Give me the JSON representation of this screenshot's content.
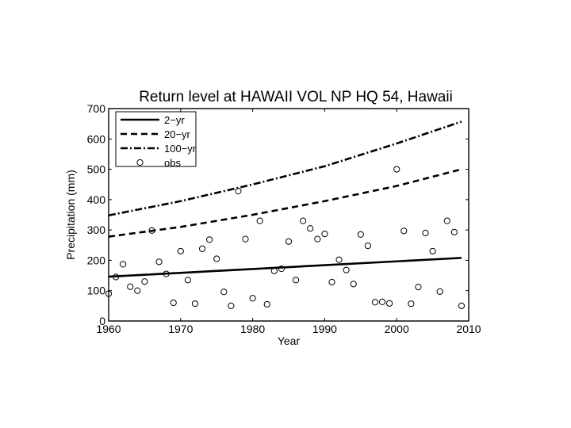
{
  "chart_data": {
    "type": "line",
    "title": "Return level at HAWAII VOL NP HQ 54, Hawaii",
    "xlabel": "Year",
    "ylabel": "Precipitation (mm)",
    "xlim": [
      1960,
      2010
    ],
    "ylim": [
      0,
      700
    ],
    "xticks": [
      1960,
      1970,
      1980,
      1990,
      2000,
      2010
    ],
    "yticks": [
      0,
      100,
      200,
      300,
      400,
      500,
      600,
      700
    ],
    "legend_position": "top-left",
    "grid": false,
    "series": [
      {
        "name": "2−yr",
        "style": "solid",
        "x": [
          1960,
          2009
        ],
        "y": [
          146,
          208
        ]
      },
      {
        "name": "20−yr",
        "style": "dashed",
        "x": [
          1960,
          1970,
          1980,
          1990,
          2000,
          2009
        ],
        "y": [
          278,
          310,
          350,
          395,
          445,
          500
        ]
      },
      {
        "name": "100−yr",
        "style": "dashdot",
        "x": [
          1960,
          1970,
          1980,
          1990,
          2000,
          2009
        ],
        "y": [
          348,
          395,
          450,
          510,
          585,
          657
        ]
      },
      {
        "name": "obs",
        "style": "marker",
        "points": [
          [
            1960,
            90
          ],
          [
            1961,
            145
          ],
          [
            1962,
            187
          ],
          [
            1963,
            113
          ],
          [
            1964,
            100
          ],
          [
            1965,
            130
          ],
          [
            1966,
            298
          ],
          [
            1967,
            195
          ],
          [
            1968,
            155
          ],
          [
            1969,
            60
          ],
          [
            1970,
            230
          ],
          [
            1971,
            135
          ],
          [
            1972,
            57
          ],
          [
            1973,
            238
          ],
          [
            1974,
            268
          ],
          [
            1975,
            205
          ],
          [
            1976,
            96
          ],
          [
            1977,
            50
          ],
          [
            1978,
            428
          ],
          [
            1979,
            270
          ],
          [
            1980,
            75
          ],
          [
            1981,
            330
          ],
          [
            1982,
            55
          ],
          [
            1983,
            165
          ],
          [
            1984,
            172
          ],
          [
            1985,
            262
          ],
          [
            1986,
            135
          ],
          [
            1987,
            330
          ],
          [
            1988,
            305
          ],
          [
            1989,
            270
          ],
          [
            1990,
            287
          ],
          [
            1991,
            128
          ],
          [
            1992,
            202
          ],
          [
            1993,
            168
          ],
          [
            1994,
            122
          ],
          [
            1995,
            285
          ],
          [
            1996,
            248
          ],
          [
            1997,
            62
          ],
          [
            1998,
            63
          ],
          [
            1999,
            58
          ],
          [
            2000,
            500
          ],
          [
            2001,
            297
          ],
          [
            2002,
            57
          ],
          [
            2003,
            112
          ],
          [
            2004,
            290
          ],
          [
            2005,
            230
          ],
          [
            2006,
            97
          ],
          [
            2007,
            330
          ],
          [
            2008,
            293
          ],
          [
            2009,
            50
          ]
        ]
      }
    ]
  }
}
